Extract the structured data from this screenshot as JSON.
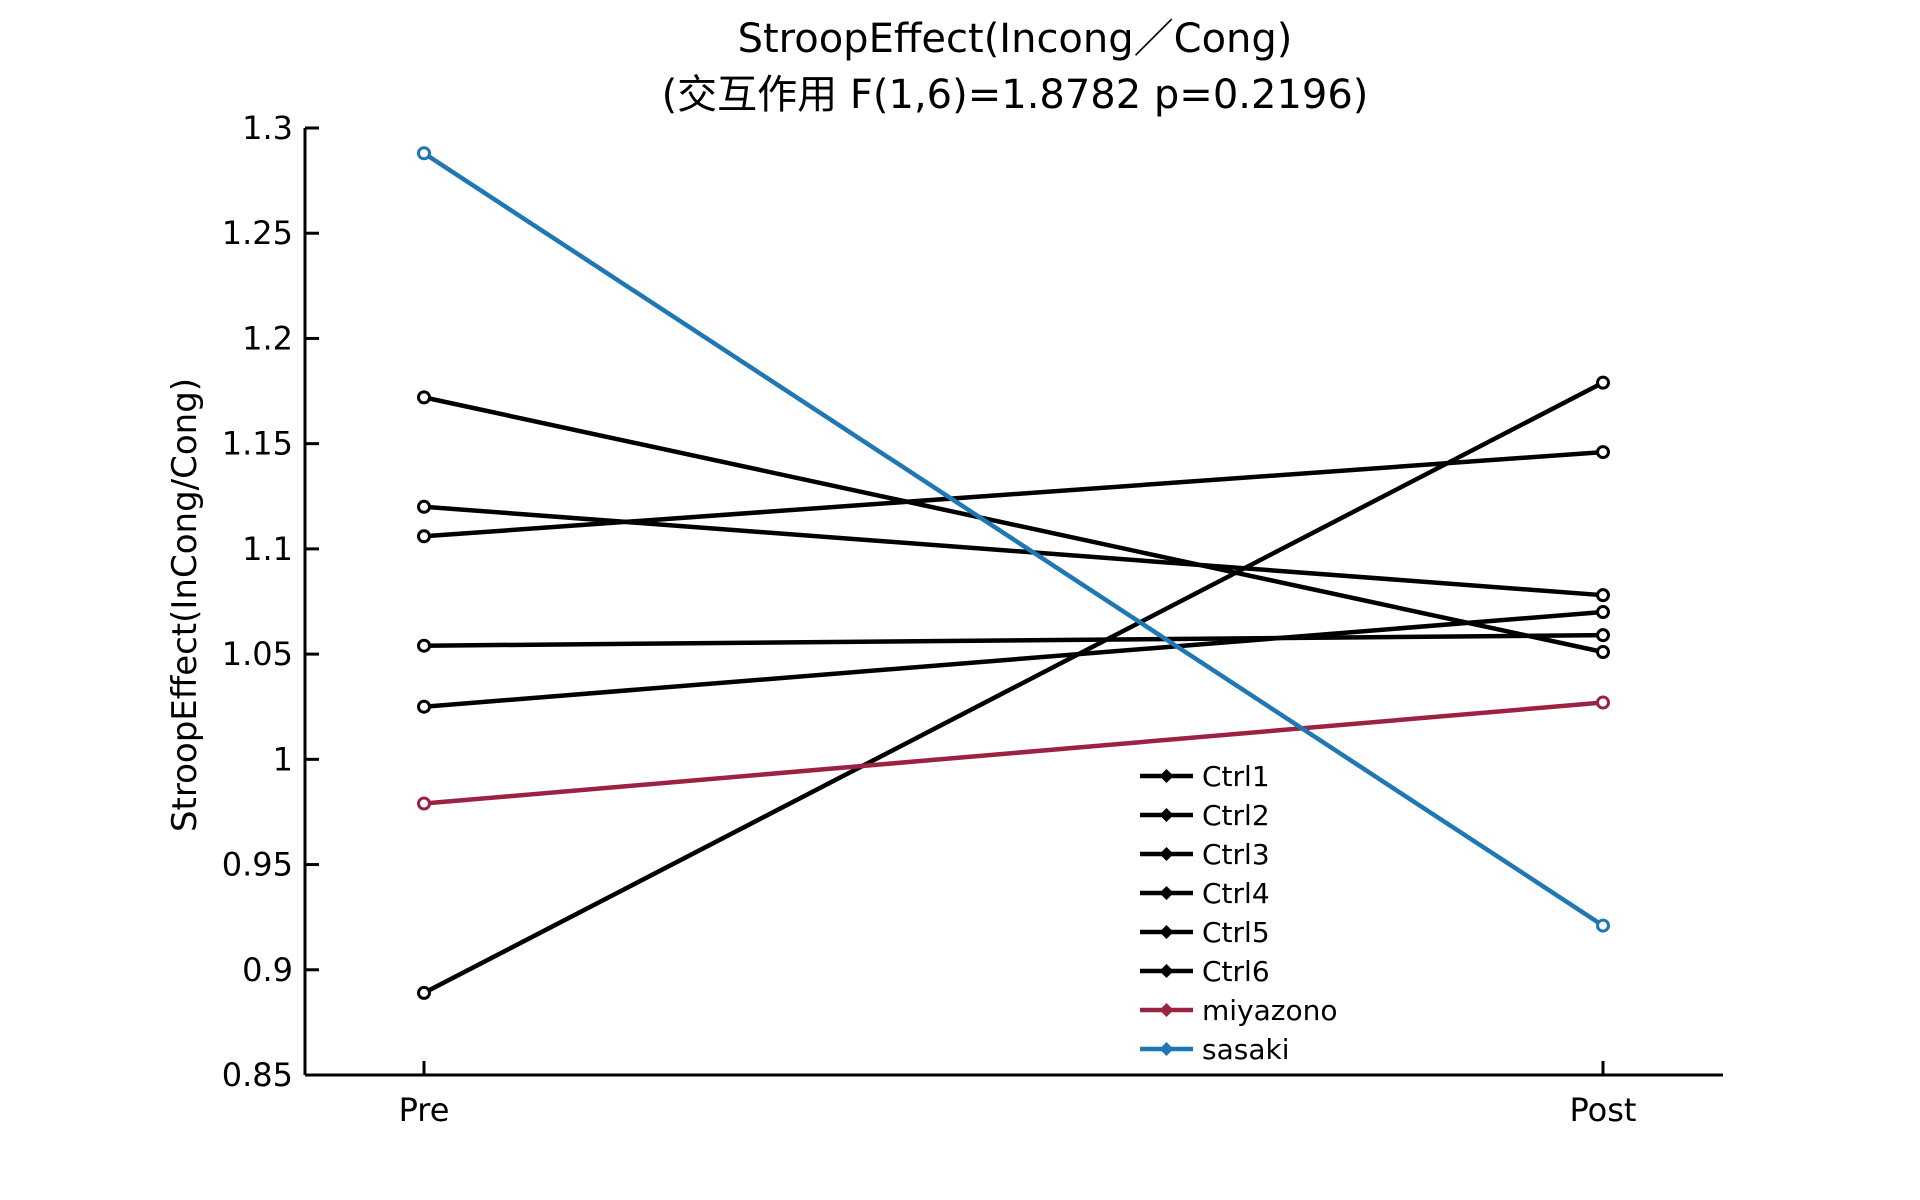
{
  "chart_data": {
    "type": "line",
    "title": "StroopEffect(Incong／Cong)",
    "subtitle": "(交互作用 F(1,6)=1.8782 p=0.2196)",
    "xlabel": "",
    "ylabel": "StroopEffect(InCong/Cong)",
    "categories": [
      "Pre",
      "Post"
    ],
    "ylim": [
      0.85,
      1.3
    ],
    "yticks": [
      "0.85",
      "0.9",
      "0.95",
      "1",
      "1.05",
      "1.1",
      "1.15",
      "1.2",
      "1.25",
      "1.3"
    ],
    "legend_position": "lower-center",
    "series": [
      {
        "name": "Ctrl1",
        "color": "#000000",
        "values": [
          1.172,
          1.051
        ]
      },
      {
        "name": "Ctrl2",
        "color": "#000000",
        "values": [
          1.12,
          1.078
        ]
      },
      {
        "name": "Ctrl3",
        "color": "#000000",
        "values": [
          1.106,
          1.146
        ]
      },
      {
        "name": "Ctrl4",
        "color": "#000000",
        "values": [
          1.054,
          1.059
        ]
      },
      {
        "name": "Ctrl5",
        "color": "#000000",
        "values": [
          1.025,
          1.07
        ]
      },
      {
        "name": "Ctrl6",
        "color": "#000000",
        "values": [
          0.889,
          1.179
        ]
      },
      {
        "name": "miyazono",
        "color": "#9b2242",
        "values": [
          0.979,
          1.027
        ]
      },
      {
        "name": "sasaki",
        "color": "#1f77b4",
        "values": [
          1.288,
          0.921
        ]
      }
    ]
  }
}
